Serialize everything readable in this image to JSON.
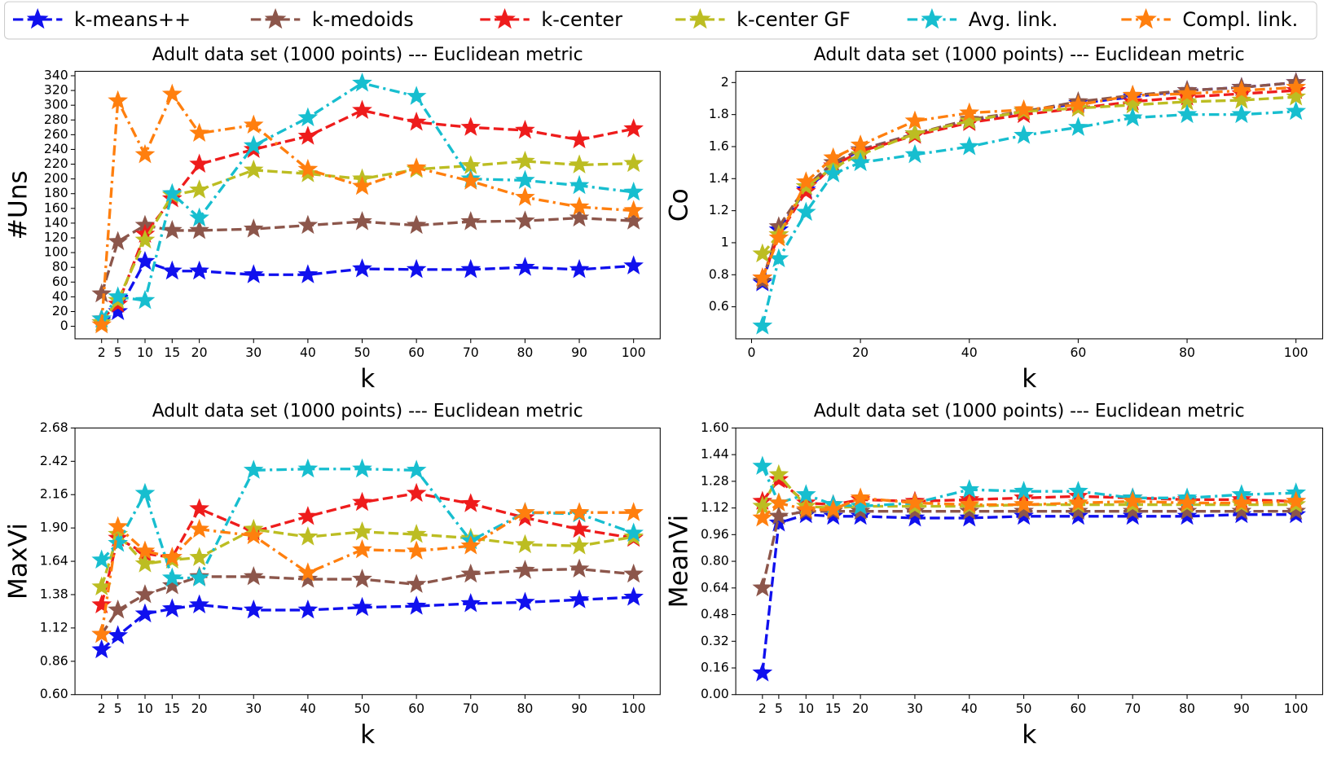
{
  "legend": {
    "series": [
      {
        "name": "k-means++",
        "color": "#1010ee",
        "dash": "dashed"
      },
      {
        "name": "k-medoids",
        "color": "#8c564b",
        "dash": "dashed"
      },
      {
        "name": "k-center",
        "color": "#ee1c1c",
        "dash": "dashed"
      },
      {
        "name": "k-center GF",
        "color": "#bcbd22",
        "dash": "dashed"
      },
      {
        "name": "Avg. link.",
        "color": "#17becf",
        "dash": "dashdot"
      },
      {
        "name": "Compl. link.",
        "color": "#ff7f0e",
        "dash": "dashdot"
      }
    ]
  },
  "chart_data": [
    {
      "type": "line",
      "title": "Adult data set (1000 points) --- Euclidean metric",
      "xlabel": "k",
      "ylabel": "#Uns",
      "x": [
        2,
        5,
        10,
        15,
        20,
        30,
        40,
        50,
        60,
        70,
        80,
        90,
        100
      ],
      "xlim": [
        -2.9,
        104.9
      ],
      "xticks": [
        2,
        5,
        10,
        15,
        20,
        30,
        40,
        50,
        60,
        70,
        80,
        90,
        100
      ],
      "ylim": [
        -17,
        346
      ],
      "yticks": [
        0,
        20,
        40,
        60,
        80,
        100,
        120,
        140,
        160,
        180,
        200,
        220,
        240,
        260,
        280,
        300,
        320,
        340
      ],
      "series": [
        {
          "values": [
            5,
            20,
            88,
            75,
            75,
            70,
            70,
            78,
            77,
            77,
            80,
            77,
            82
          ]
        },
        {
          "values": [
            44,
            115,
            137,
            130,
            130,
            132,
            137,
            142,
            137,
            142,
            143,
            147,
            143
          ]
        },
        {
          "values": [
            10,
            30,
            125,
            173,
            220,
            240,
            258,
            293,
            277,
            270,
            266,
            253,
            268
          ]
        },
        {
          "values": [
            5,
            35,
            117,
            178,
            185,
            212,
            207,
            200,
            213,
            218,
            224,
            219,
            221
          ]
        },
        {
          "values": [
            10,
            40,
            35,
            180,
            147,
            245,
            283,
            330,
            312,
            200,
            198,
            191,
            182
          ]
        },
        {
          "values": [
            2,
            306,
            233,
            315,
            262,
            273,
            213,
            190,
            215,
            197,
            175,
            162,
            157
          ]
        }
      ]
    },
    {
      "type": "line",
      "title": "Adult data set (1000 points) --- Euclidean metric",
      "xlabel": "k",
      "ylabel": "Co",
      "x": [
        2,
        5,
        10,
        15,
        20,
        30,
        40,
        50,
        60,
        70,
        80,
        90,
        100
      ],
      "xlim": [
        -2.9,
        104.9
      ],
      "xticks": [
        0,
        20,
        40,
        60,
        80,
        100
      ],
      "ylim": [
        0.4,
        2.07
      ],
      "yticks": [
        0.6,
        0.8,
        1.0,
        1.2,
        1.4,
        1.6,
        1.8,
        2.0
      ],
      "series": [
        {
          "values": [
            0.75,
            1.08,
            1.33,
            1.48,
            1.58,
            1.68,
            1.76,
            1.82,
            1.87,
            1.91,
            1.95,
            1.97,
            2.0
          ]
        },
        {
          "values": [
            0.76,
            1.1,
            1.35,
            1.5,
            1.58,
            1.68,
            1.77,
            1.82,
            1.88,
            1.92,
            1.95,
            1.97,
            2.0
          ]
        },
        {
          "values": [
            0.78,
            1.05,
            1.32,
            1.48,
            1.57,
            1.67,
            1.75,
            1.8,
            1.84,
            1.88,
            1.91,
            1.93,
            1.95
          ]
        },
        {
          "values": [
            0.93,
            1.05,
            1.35,
            1.47,
            1.55,
            1.68,
            1.76,
            1.82,
            1.84,
            1.86,
            1.88,
            1.89,
            1.91
          ]
        },
        {
          "values": [
            0.48,
            0.9,
            1.19,
            1.43,
            1.5,
            1.55,
            1.6,
            1.67,
            1.72,
            1.78,
            1.8,
            1.8,
            1.82
          ]
        },
        {
          "values": [
            0.78,
            1.03,
            1.38,
            1.53,
            1.61,
            1.76,
            1.81,
            1.83,
            1.86,
            1.92,
            1.93,
            1.95,
            1.97
          ]
        }
      ]
    },
    {
      "type": "line",
      "title": "Adult data set (1000 points) --- Euclidean metric",
      "xlabel": "k",
      "ylabel": "MaxVi",
      "x": [
        2,
        5,
        10,
        15,
        20,
        30,
        40,
        50,
        60,
        70,
        80,
        90,
        100
      ],
      "xlim": [
        -2.9,
        104.9
      ],
      "xticks": [
        2,
        5,
        10,
        15,
        20,
        30,
        40,
        50,
        60,
        70,
        80,
        90,
        100
      ],
      "ylim": [
        0.6,
        2.68
      ],
      "yticks": [
        {
          "value": 0.6,
          "label": "0.60"
        },
        0.86,
        1.12,
        1.38,
        1.64,
        {
          "value": 1.9,
          "label": "1.90"
        },
        2.16,
        2.42,
        2.68
      ],
      "series": [
        {
          "values": [
            0.95,
            1.06,
            1.23,
            1.27,
            1.3,
            1.26,
            1.26,
            1.28,
            1.29,
            1.31,
            1.32,
            1.34,
            1.36
          ]
        },
        {
          "values": [
            1.07,
            1.26,
            1.38,
            1.45,
            1.52,
            1.52,
            1.5,
            1.5,
            1.46,
            1.54,
            1.57,
            1.58,
            1.54
          ]
        },
        {
          "values": [
            1.3,
            1.82,
            1.7,
            1.67,
            2.05,
            1.87,
            1.99,
            2.1,
            2.17,
            2.09,
            1.98,
            1.89,
            1.82
          ]
        },
        {
          "values": [
            1.44,
            1.85,
            1.62,
            1.65,
            1.67,
            1.89,
            1.83,
            1.87,
            1.85,
            1.82,
            1.77,
            1.76,
            1.83
          ]
        },
        {
          "values": [
            1.65,
            1.78,
            2.17,
            1.51,
            1.51,
            2.35,
            2.36,
            2.36,
            2.35,
            1.8,
            2.02,
            2.01,
            1.86
          ]
        },
        {
          "values": [
            1.07,
            1.91,
            1.72,
            1.67,
            1.89,
            1.84,
            1.55,
            1.73,
            1.72,
            1.76,
            2.02,
            2.02,
            2.02
          ]
        }
      ]
    },
    {
      "type": "line",
      "title": "Adult data set (1000 points) --- Euclidean metric",
      "xlabel": "k",
      "ylabel": "MeanVi",
      "x": [
        2,
        5,
        10,
        15,
        20,
        30,
        40,
        50,
        60,
        70,
        80,
        90,
        100
      ],
      "xlim": [
        -2.9,
        104.9
      ],
      "xticks": [
        2,
        5,
        10,
        15,
        20,
        30,
        40,
        50,
        60,
        70,
        80,
        90,
        100
      ],
      "ylim": [
        0,
        1.6
      ],
      "yticks": [
        {
          "value": 0,
          "label": "0.00"
        },
        0.16,
        0.32,
        0.48,
        0.64,
        {
          "value": 0.8,
          "label": "0.80"
        },
        0.96,
        1.12,
        1.28,
        1.44,
        {
          "value": 1.6,
          "label": "1.60"
        }
      ],
      "series": [
        {
          "values": [
            0.13,
            1.03,
            1.08,
            1.07,
            1.07,
            1.06,
            1.06,
            1.07,
            1.07,
            1.07,
            1.07,
            1.08,
            1.08
          ]
        },
        {
          "values": [
            0.64,
            1.07,
            1.1,
            1.1,
            1.1,
            1.1,
            1.1,
            1.1,
            1.1,
            1.1,
            1.1,
            1.1,
            1.1
          ]
        },
        {
          "values": [
            1.16,
            1.29,
            1.15,
            1.14,
            1.17,
            1.16,
            1.17,
            1.18,
            1.19,
            1.18,
            1.17,
            1.17,
            1.16
          ]
        },
        {
          "values": [
            1.13,
            1.32,
            1.13,
            1.12,
            1.13,
            1.13,
            1.13,
            1.14,
            1.14,
            1.14,
            1.14,
            1.14,
            1.14
          ]
        },
        {
          "values": [
            1.37,
            1.15,
            1.2,
            1.14,
            1.13,
            1.15,
            1.23,
            1.22,
            1.22,
            1.18,
            1.18,
            1.2,
            1.21
          ]
        },
        {
          "values": [
            1.06,
            1.15,
            1.11,
            1.11,
            1.18,
            1.15,
            1.14,
            1.14,
            1.15,
            1.16,
            1.15,
            1.15,
            1.16
          ]
        }
      ]
    }
  ]
}
